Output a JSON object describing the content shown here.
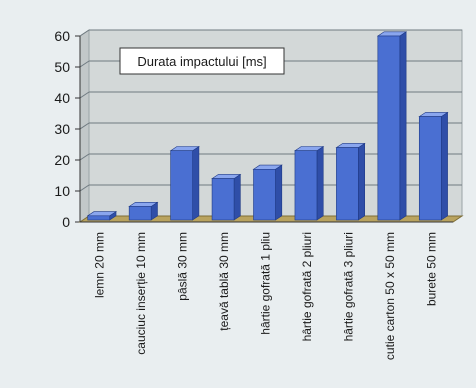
{
  "chart_data": {
    "type": "bar",
    "title": "Durata impactului [ms]",
    "xlabel": "",
    "ylabel": "",
    "categories": [
      "lemn 20 mm",
      "cauciuc inserție 10 mm",
      "pâslă 30 mm",
      "țeavă tablă 30 mm",
      "hârtie gofrată 1 pliu",
      "hârtie gofrată 2 pliuri",
      "hârtie gofrată 3 pliuri",
      "cutie carton 50 x 50 mm",
      "burete 50 mm"
    ],
    "values": [
      2,
      5,
      23,
      14,
      17,
      23,
      24,
      60,
      34
    ],
    "ylim": [
      0,
      60
    ],
    "yticks": [
      "0",
      "10",
      "20",
      "30",
      "40",
      "50",
      "60"
    ],
    "grid": true,
    "legend_position": "top-left inside plot",
    "colors": {
      "bar_front": "#4a6fd2",
      "bar_top": "#8aa6ee",
      "bar_side": "#2f4ea8",
      "back_wall": "#d3d8d8",
      "floor": "#b9a35f",
      "gridline": "#6f7a80"
    }
  }
}
